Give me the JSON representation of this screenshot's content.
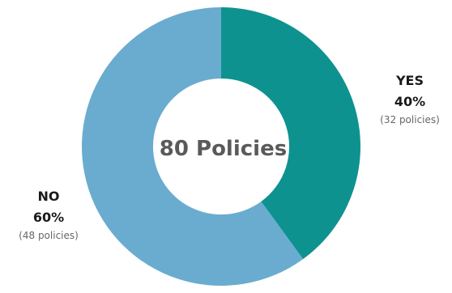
{
  "chart_data": {
    "type": "donut",
    "center_label": "80 Policies",
    "categories": [
      "YES",
      "NO"
    ],
    "values": [
      32,
      48
    ],
    "percent_labels": [
      "40%",
      "60%"
    ],
    "count_labels": [
      "(32 policies)",
      "(48 policies)"
    ],
    "colors": [
      "#0e9290",
      "#6aaccf"
    ],
    "legend": "none"
  }
}
